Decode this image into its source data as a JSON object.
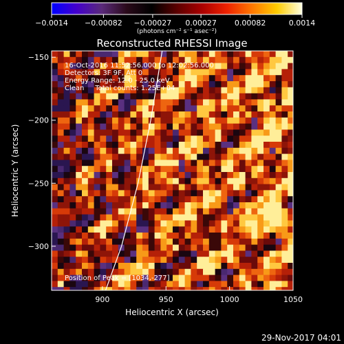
{
  "chart_data": {
    "type": "heatmap",
    "title": "Reconstructed RHESSI Image",
    "xlabel": "Heliocentric X (arcsec)",
    "ylabel": "Heliocentric Y (arcsec)",
    "xlim": [
      860,
      1050
    ],
    "ylim": [
      -335,
      -145
    ],
    "x_ticks": [
      900,
      950,
      1000,
      1050
    ],
    "y_ticks": [
      -150,
      -200,
      -250,
      -300
    ],
    "x_tick_labels": [
      "900",
      "950",
      "1000",
      "1050"
    ],
    "y_tick_labels": [
      "−150",
      "−200",
      "−250",
      "−300"
    ],
    "grid": false,
    "colorbar": {
      "tick_values": [
        -0.0014,
        -0.00082,
        -0.00027,
        0.00027,
        0.00082,
        0.0014
      ],
      "tick_labels": [
        "−0.0014",
        "−0.00082",
        "−0.00027",
        "0.00027",
        "0.00082",
        "0.0014"
      ],
      "unit_label": "(photons cm⁻² s⁻¹ asec⁻²)",
      "colormap": [
        "#0000ff",
        "#4400cc",
        "#5a2a7a",
        "#2a0a1a",
        "#000000",
        "#5a0000",
        "#aa0000",
        "#ee2200",
        "#ff7700",
        "#ffcc00",
        "#ffffe0"
      ]
    },
    "annotations": [
      "16-Oct-2016 11:52:56.000 to 12:02:56.000",
      "Detectors: 3F 9F, Att 0",
      "Energy Range: 12.0 - 25.0 keV",
      "Clean     Total counts: 1.25E+04"
    ],
    "peak_label": "Position of Peak = [1034,-277]",
    "peak": {
      "x": 1034,
      "y": -277
    },
    "limb_curve": [
      [
        902.5,
        -335
      ],
      [
        915,
        -300
      ],
      [
        928,
        -250
      ],
      [
        938,
        -200
      ],
      [
        947,
        -145
      ]
    ]
  },
  "footer": {
    "date": "29-Nov-2017 04:01"
  }
}
